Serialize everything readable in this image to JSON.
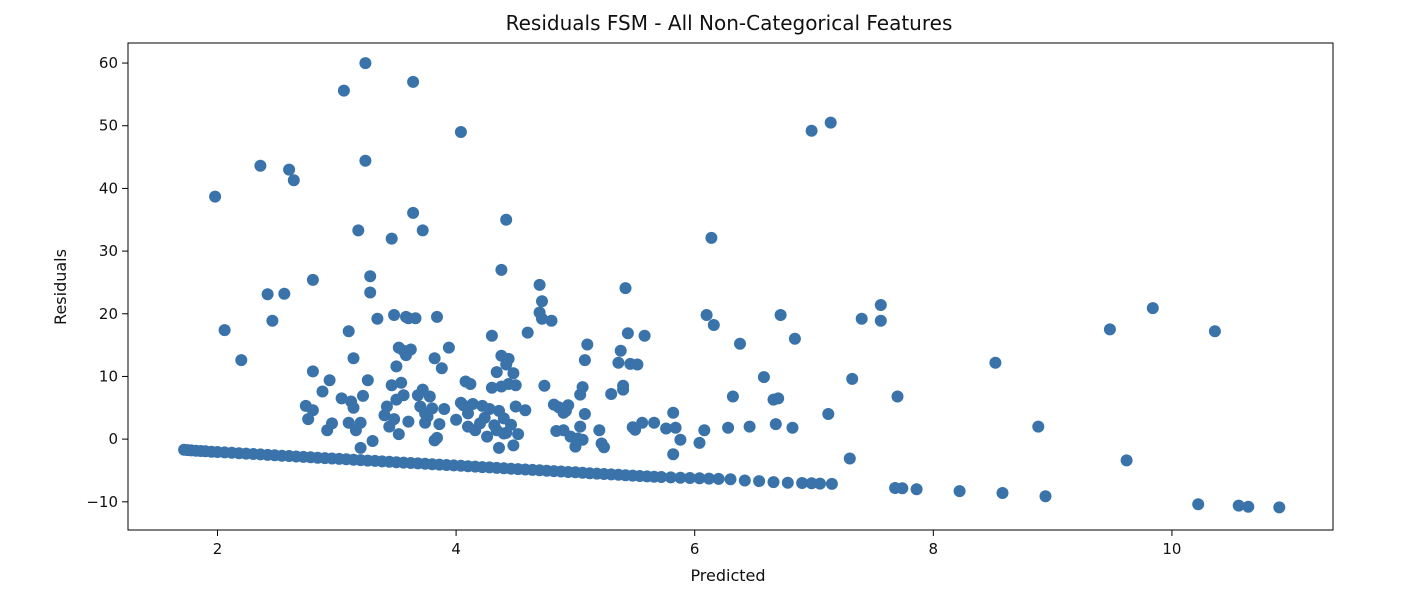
{
  "chart_data": {
    "type": "scatter",
    "title": "Residuals FSM - All Non-Categorical Features",
    "xlabel": "Predicted",
    "ylabel": "Residuals",
    "xlim": [
      1.25,
      11.35
    ],
    "ylim": [
      -14.5,
      63.2
    ],
    "xticks": [
      2,
      4,
      6,
      8,
      10
    ],
    "yticks": [
      -10,
      0,
      10,
      20,
      30,
      40,
      50,
      60
    ],
    "grid": false,
    "marker_color": "#3a73a9",
    "series": [
      {
        "name": "",
        "points": [
          [
            1.72,
            -1.7
          ],
          [
            1.75,
            -1.75
          ],
          [
            1.78,
            -1.8
          ],
          [
            1.82,
            -1.85
          ],
          [
            1.86,
            -1.9
          ],
          [
            1.9,
            -1.95
          ],
          [
            1.95,
            -2.0
          ],
          [
            2.0,
            -2.05
          ],
          [
            2.06,
            -2.12
          ],
          [
            2.12,
            -2.18
          ],
          [
            2.18,
            -2.25
          ],
          [
            2.24,
            -2.31
          ],
          [
            2.3,
            -2.38
          ],
          [
            2.36,
            -2.44
          ],
          [
            2.42,
            -2.51
          ],
          [
            2.48,
            -2.57
          ],
          [
            2.54,
            -2.64
          ],
          [
            2.6,
            -2.7
          ],
          [
            2.66,
            -2.77
          ],
          [
            2.72,
            -2.83
          ],
          [
            2.78,
            -2.9
          ],
          [
            2.84,
            -2.96
          ],
          [
            2.9,
            -3.03
          ],
          [
            2.96,
            -3.09
          ],
          [
            3.02,
            -3.16
          ],
          [
            3.08,
            -3.22
          ],
          [
            3.14,
            -3.29
          ],
          [
            3.2,
            -3.35
          ],
          [
            3.26,
            -3.42
          ],
          [
            3.32,
            -3.48
          ],
          [
            3.38,
            -3.55
          ],
          [
            3.44,
            -3.61
          ],
          [
            3.5,
            -3.68
          ],
          [
            3.56,
            -3.74
          ],
          [
            3.62,
            -3.81
          ],
          [
            3.68,
            -3.87
          ],
          [
            3.74,
            -3.94
          ],
          [
            3.8,
            -4.0
          ],
          [
            3.86,
            -4.07
          ],
          [
            3.92,
            -4.13
          ],
          [
            3.98,
            -4.2
          ],
          [
            4.04,
            -4.26
          ],
          [
            4.1,
            -4.33
          ],
          [
            4.16,
            -4.39
          ],
          [
            4.22,
            -4.46
          ],
          [
            4.28,
            -4.52
          ],
          [
            4.34,
            -4.59
          ],
          [
            4.4,
            -4.65
          ],
          [
            4.46,
            -4.72
          ],
          [
            4.52,
            -4.78
          ],
          [
            4.58,
            -4.85
          ],
          [
            4.64,
            -4.91
          ],
          [
            4.7,
            -4.98
          ],
          [
            4.76,
            -5.04
          ],
          [
            4.82,
            -5.11
          ],
          [
            4.88,
            -5.17
          ],
          [
            4.94,
            -5.24
          ],
          [
            5.0,
            -5.3
          ],
          [
            5.06,
            -5.37
          ],
          [
            5.12,
            -5.43
          ],
          [
            5.18,
            -5.5
          ],
          [
            5.24,
            -5.56
          ],
          [
            5.3,
            -5.63
          ],
          [
            5.36,
            -5.69
          ],
          [
            5.42,
            -5.76
          ],
          [
            5.48,
            -5.82
          ],
          [
            5.54,
            -5.89
          ],
          [
            5.6,
            -5.95
          ],
          [
            5.66,
            -6.0
          ],
          [
            5.72,
            -6.05
          ],
          [
            5.8,
            -6.1
          ],
          [
            5.88,
            -6.15
          ],
          [
            5.96,
            -6.2
          ],
          [
            6.04,
            -6.25
          ],
          [
            6.12,
            -6.3
          ],
          [
            6.2,
            -6.35
          ],
          [
            6.3,
            -6.4
          ],
          [
            6.42,
            -6.6
          ],
          [
            6.54,
            -6.7
          ],
          [
            6.66,
            -6.85
          ],
          [
            6.78,
            -6.95
          ],
          [
            6.9,
            -7.0
          ],
          [
            6.98,
            -7.05
          ],
          [
            7.05,
            -7.1
          ],
          [
            7.15,
            -7.15
          ],
          [
            7.68,
            -7.8
          ],
          [
            7.74,
            -7.85
          ],
          [
            7.86,
            -8.0
          ],
          [
            8.22,
            -8.3
          ],
          [
            8.58,
            -8.6
          ],
          [
            8.94,
            -9.1
          ],
          [
            10.22,
            -10.4
          ],
          [
            10.56,
            -10.6
          ],
          [
            10.64,
            -10.8
          ],
          [
            10.9,
            -10.9
          ],
          [
            1.98,
            38.7
          ],
          [
            2.06,
            17.4
          ],
          [
            2.2,
            12.6
          ],
          [
            2.36,
            43.6
          ],
          [
            2.42,
            23.1
          ],
          [
            2.46,
            18.9
          ],
          [
            2.56,
            23.2
          ],
          [
            2.6,
            43.0
          ],
          [
            2.64,
            41.3
          ],
          [
            2.8,
            25.4
          ],
          [
            2.8,
            10.8
          ],
          [
            2.74,
            5.3
          ],
          [
            2.76,
            3.2
          ],
          [
            2.8,
            4.6
          ],
          [
            2.88,
            7.6
          ],
          [
            2.92,
            1.4
          ],
          [
            2.94,
            9.4
          ],
          [
            2.96,
            2.5
          ],
          [
            3.04,
            6.5
          ],
          [
            3.06,
            55.6
          ],
          [
            3.1,
            2.6
          ],
          [
            3.1,
            17.2
          ],
          [
            3.12,
            6.0
          ],
          [
            3.14,
            12.9
          ],
          [
            3.14,
            5.0
          ],
          [
            3.16,
            1.4
          ],
          [
            3.18,
            33.3
          ],
          [
            3.2,
            -1.4
          ],
          [
            3.2,
            2.6
          ],
          [
            3.22,
            6.9
          ],
          [
            3.24,
            60.0
          ],
          [
            3.24,
            44.4
          ],
          [
            3.26,
            9.4
          ],
          [
            3.28,
            23.4
          ],
          [
            3.28,
            26.0
          ],
          [
            3.3,
            -0.3
          ],
          [
            3.34,
            19.2
          ],
          [
            3.4,
            3.8
          ],
          [
            3.42,
            5.2
          ],
          [
            3.44,
            2.0
          ],
          [
            3.46,
            8.6
          ],
          [
            3.46,
            32.0
          ],
          [
            3.48,
            3.2
          ],
          [
            3.48,
            19.8
          ],
          [
            3.5,
            6.3
          ],
          [
            3.5,
            11.6
          ],
          [
            3.52,
            14.6
          ],
          [
            3.52,
            0.8
          ],
          [
            3.54,
            9.0
          ],
          [
            3.56,
            7.0
          ],
          [
            3.56,
            14.1
          ],
          [
            3.58,
            19.5
          ],
          [
            3.58,
            13.4
          ],
          [
            3.6,
            2.8
          ],
          [
            3.6,
            19.3
          ],
          [
            3.62,
            14.3
          ],
          [
            3.64,
            57.0
          ],
          [
            3.64,
            36.1
          ],
          [
            3.66,
            19.3
          ],
          [
            3.68,
            7.0
          ],
          [
            3.7,
            5.2
          ],
          [
            3.72,
            7.9
          ],
          [
            3.72,
            33.3
          ],
          [
            3.74,
            4.1
          ],
          [
            3.74,
            2.6
          ],
          [
            3.76,
            3.6
          ],
          [
            3.78,
            6.8
          ],
          [
            3.8,
            4.9
          ],
          [
            3.82,
            -0.2
          ],
          [
            3.82,
            12.9
          ],
          [
            3.84,
            19.5
          ],
          [
            3.84,
            0.2
          ],
          [
            3.86,
            2.4
          ],
          [
            3.88,
            11.3
          ],
          [
            3.9,
            4.8
          ],
          [
            3.94,
            14.6
          ],
          [
            4.0,
            3.1
          ],
          [
            4.04,
            49.0
          ],
          [
            4.04,
            5.8
          ],
          [
            4.06,
            5.4
          ],
          [
            4.08,
            9.2
          ],
          [
            4.1,
            4.1
          ],
          [
            4.1,
            2.0
          ],
          [
            4.12,
            8.8
          ],
          [
            4.14,
            5.6
          ],
          [
            4.16,
            1.4
          ],
          [
            4.2,
            2.5
          ],
          [
            4.22,
            5.3
          ],
          [
            4.24,
            3.4
          ],
          [
            4.26,
            0.4
          ],
          [
            4.28,
            4.8
          ],
          [
            4.3,
            16.5
          ],
          [
            4.3,
            8.2
          ],
          [
            4.32,
            2.2
          ],
          [
            4.34,
            10.7
          ],
          [
            4.34,
            1.4
          ],
          [
            4.36,
            4.5
          ],
          [
            4.36,
            -1.4
          ],
          [
            4.38,
            27.0
          ],
          [
            4.38,
            13.3
          ],
          [
            4.38,
            8.4
          ],
          [
            4.4,
            3.3
          ],
          [
            4.4,
            0.9
          ],
          [
            4.42,
            11.9
          ],
          [
            4.42,
            1.0
          ],
          [
            4.42,
            35.0
          ],
          [
            4.44,
            8.8
          ],
          [
            4.44,
            12.8
          ],
          [
            4.46,
            2.3
          ],
          [
            4.48,
            -1.0
          ],
          [
            4.48,
            10.5
          ],
          [
            4.5,
            5.2
          ],
          [
            4.5,
            8.6
          ],
          [
            4.52,
            0.8
          ],
          [
            4.58,
            4.6
          ],
          [
            4.6,
            17.0
          ],
          [
            4.7,
            20.2
          ],
          [
            4.7,
            24.6
          ],
          [
            4.72,
            22.0
          ],
          [
            4.72,
            19.2
          ],
          [
            4.74,
            8.5
          ],
          [
            4.8,
            18.9
          ],
          [
            4.82,
            5.5
          ],
          [
            4.84,
            1.3
          ],
          [
            4.86,
            5.1
          ],
          [
            4.9,
            1.4
          ],
          [
            4.9,
            4.2
          ],
          [
            4.92,
            4.5
          ],
          [
            4.94,
            5.4
          ],
          [
            4.96,
            0.4
          ],
          [
            5.0,
            -1.2
          ],
          [
            5.02,
            0.1
          ],
          [
            5.04,
            2.0
          ],
          [
            5.04,
            7.1
          ],
          [
            5.06,
            -0.1
          ],
          [
            5.06,
            8.3
          ],
          [
            5.08,
            12.6
          ],
          [
            5.08,
            4.0
          ],
          [
            5.1,
            15.1
          ],
          [
            5.2,
            1.4
          ],
          [
            5.22,
            -0.7
          ],
          [
            5.24,
            -1.3
          ],
          [
            5.3,
            7.2
          ],
          [
            5.36,
            12.2
          ],
          [
            5.38,
            14.1
          ],
          [
            5.4,
            8.5
          ],
          [
            5.4,
            7.9
          ],
          [
            5.42,
            24.1
          ],
          [
            5.44,
            16.9
          ],
          [
            5.46,
            12.0
          ],
          [
            5.48,
            1.9
          ],
          [
            5.5,
            1.5
          ],
          [
            5.52,
            11.9
          ],
          [
            5.56,
            2.6
          ],
          [
            5.58,
            16.5
          ],
          [
            5.66,
            2.6
          ],
          [
            5.76,
            1.7
          ],
          [
            5.82,
            4.2
          ],
          [
            5.82,
            -2.4
          ],
          [
            5.84,
            1.8
          ],
          [
            5.88,
            -0.1
          ],
          [
            6.04,
            -0.6
          ],
          [
            6.08,
            1.4
          ],
          [
            6.1,
            19.8
          ],
          [
            6.14,
            32.1
          ],
          [
            6.16,
            18.2
          ],
          [
            6.28,
            1.8
          ],
          [
            6.32,
            6.8
          ],
          [
            6.38,
            15.2
          ],
          [
            6.46,
            2.0
          ],
          [
            6.58,
            9.9
          ],
          [
            6.66,
            6.3
          ],
          [
            6.68,
            2.4
          ],
          [
            6.7,
            6.5
          ],
          [
            6.72,
            19.8
          ],
          [
            6.82,
            1.8
          ],
          [
            6.84,
            16.0
          ],
          [
            6.98,
            49.2
          ],
          [
            7.14,
            50.5
          ],
          [
            7.12,
            4.0
          ],
          [
            7.3,
            -3.1
          ],
          [
            7.32,
            9.6
          ],
          [
            7.4,
            19.2
          ],
          [
            7.56,
            21.4
          ],
          [
            7.56,
            18.9
          ],
          [
            7.7,
            6.8
          ],
          [
            8.52,
            12.2
          ],
          [
            8.88,
            2.0
          ],
          [
            9.48,
            17.5
          ],
          [
            9.62,
            -3.4
          ],
          [
            9.84,
            20.9
          ],
          [
            10.36,
            17.2
          ]
        ]
      }
    ]
  }
}
